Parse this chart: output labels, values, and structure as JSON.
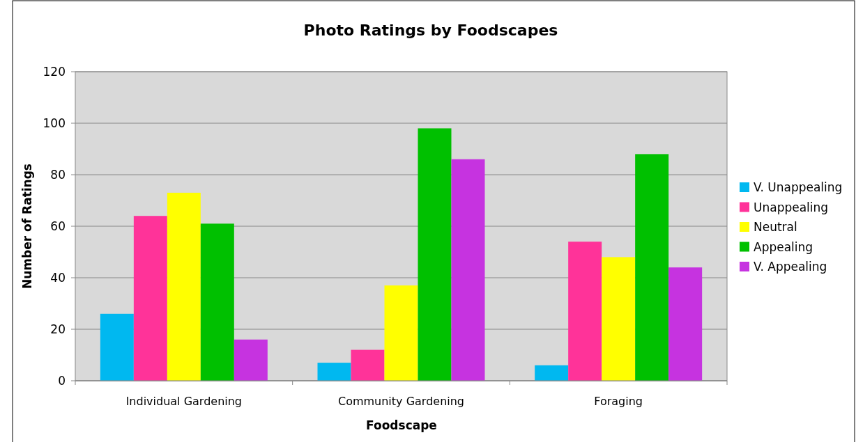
{
  "chart_data": {
    "type": "bar",
    "title": "Photo Ratings by Foodscapes",
    "xlabel": "Foodscape",
    "ylabel": "Number of Ratings",
    "categories": [
      "Individual Gardening",
      "Community Gardening",
      "Foraging"
    ],
    "series": [
      {
        "name": "V. Unappealing",
        "color": "#00b8f0",
        "values": [
          26,
          7,
          6
        ]
      },
      {
        "name": "Unappealing",
        "color": "#ff3399",
        "values": [
          64,
          12,
          54
        ]
      },
      {
        "name": "Neutral",
        "color": "#ffff00",
        "values": [
          73,
          37,
          48
        ]
      },
      {
        "name": "Appealing",
        "color": "#00c000",
        "values": [
          61,
          98,
          88
        ]
      },
      {
        "name": "V. Appealing",
        "color": "#c633e0",
        "values": [
          16,
          86,
          44
        ]
      }
    ],
    "ylim": [
      0,
      120
    ],
    "yticks": [
      0,
      20,
      40,
      60,
      80,
      100,
      120
    ],
    "grid": "y",
    "legend": "right"
  }
}
